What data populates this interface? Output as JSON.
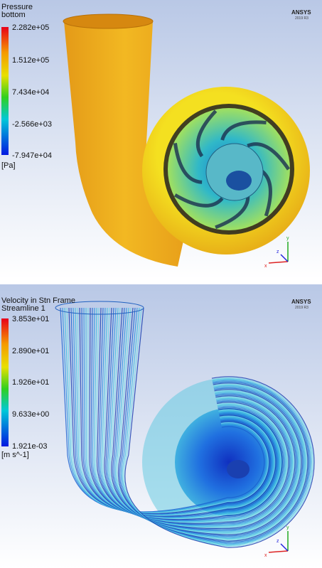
{
  "panels": [
    {
      "title": "Pressure",
      "subtitle": "bottom",
      "legend_labels": [
        "2.282e+05",
        "1.512e+05",
        "7.434e+04",
        "-2.566e+03",
        "-7.947e+04"
      ],
      "unit": "[Pa]",
      "logo": "ANSYS",
      "version": "2019 R3",
      "axes": [
        "x",
        "y",
        "z"
      ]
    },
    {
      "title": "Velocity in Stn Frame",
      "subtitle": "Streamline 1",
      "legend_labels": [
        "3.853e+01",
        "2.890e+01",
        "1.926e+01",
        "9.633e+00",
        "1.921e-03"
      ],
      "unit": "[m s^-1]",
      "logo": "ANSYS",
      "version": "2019 R3",
      "axes": [
        "x",
        "y",
        "z"
      ]
    }
  ]
}
